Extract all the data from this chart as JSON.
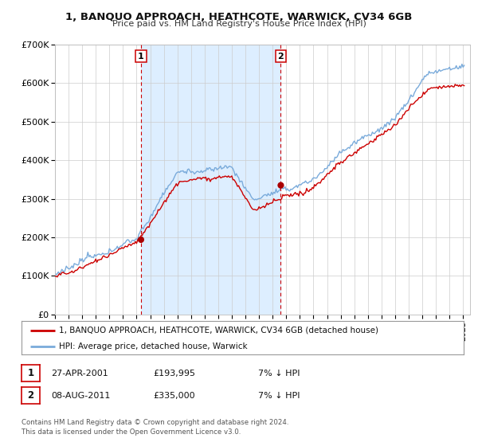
{
  "title": "1, BANQUO APPROACH, HEATHCOTE, WARWICK, CV34 6GB",
  "subtitle": "Price paid vs. HM Land Registry's House Price Index (HPI)",
  "legend_line1": "1, BANQUO APPROACH, HEATHCOTE, WARWICK, CV34 6GB (detached house)",
  "legend_line2": "HPI: Average price, detached house, Warwick",
  "footer1": "Contains HM Land Registry data © Crown copyright and database right 2024.",
  "footer2": "This data is licensed under the Open Government Licence v3.0.",
  "annotation1_label": "1",
  "annotation1_date": "27-APR-2001",
  "annotation1_price": "£193,995",
  "annotation1_hpi": "7% ↓ HPI",
  "annotation2_label": "2",
  "annotation2_date": "08-AUG-2011",
  "annotation2_price": "£335,000",
  "annotation2_hpi": "7% ↓ HPI",
  "line1_color": "#cc0000",
  "line2_color": "#7aabdb",
  "marker_color": "#aa0000",
  "vline_color": "#cc0000",
  "shade_color": "#ddeeff",
  "background_color": "#ffffff",
  "grid_color": "#cccccc",
  "ylim": [
    0,
    700000
  ],
  "yticks": [
    0,
    100000,
    200000,
    300000,
    400000,
    500000,
    600000,
    700000
  ],
  "ytick_labels": [
    "£0",
    "£100K",
    "£200K",
    "£300K",
    "£400K",
    "£500K",
    "£600K",
    "£700K"
  ],
  "xmin": 1995.0,
  "xmax": 2025.5,
  "marker1_x": 2001.32,
  "marker1_y": 193995,
  "marker2_x": 2011.6,
  "marker2_y": 335000,
  "vline1_x": 2001.32,
  "vline2_x": 2011.6
}
